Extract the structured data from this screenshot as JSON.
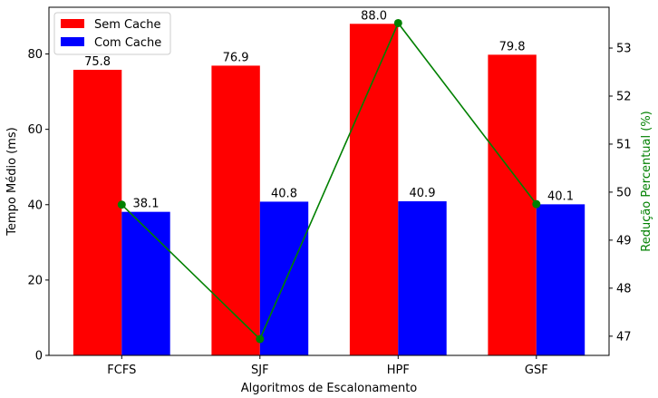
{
  "chart_data": {
    "type": "bar",
    "categories": [
      "FCFS",
      "SJF",
      "HPF",
      "GSF"
    ],
    "series": [
      {
        "name": "Sem Cache",
        "color": "#ff0000",
        "values": [
          75.8,
          76.9,
          88.0,
          79.8
        ],
        "labels": [
          "75.8",
          "76.9",
          "88.0",
          "79.8"
        ]
      },
      {
        "name": "Com Cache",
        "color": "#0000ff",
        "values": [
          38.1,
          40.8,
          40.9,
          40.1
        ],
        "labels": [
          "38.1",
          "40.8",
          "40.9",
          "40.1"
        ]
      }
    ],
    "secondary_series": {
      "type": "line",
      "color": "#008000",
      "values": [
        49.74,
        46.94,
        53.52,
        49.75
      ]
    },
    "xlabel": "Algoritmos de Escalonamento",
    "ylabel": "Tempo Médio (ms)",
    "y2label": "Redução Percentual (%)",
    "ylim": [
      0,
      92.4
    ],
    "y2lim": [
      46.6,
      53.85
    ],
    "yticks": [
      0,
      20,
      40,
      60,
      80
    ],
    "y2ticks": [
      47,
      48,
      49,
      50,
      51,
      52,
      53
    ],
    "legend_position": "top-left"
  }
}
